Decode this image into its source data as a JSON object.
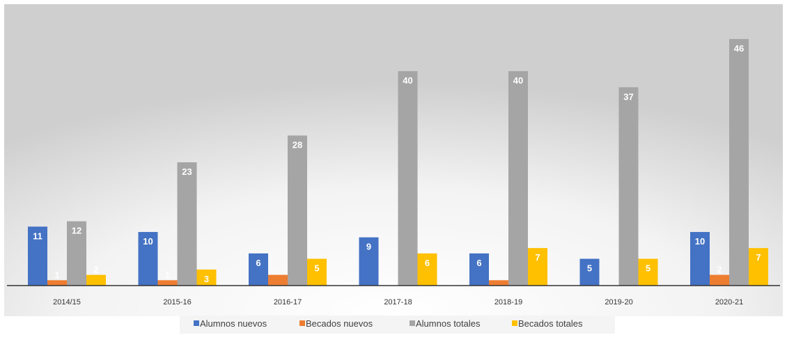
{
  "chart_data": {
    "type": "bar",
    "categories": [
      "2014/15",
      "2015-16",
      "2016-17",
      "2017-18",
      "2018-19",
      "2019-20",
      "2020-21"
    ],
    "series": [
      {
        "name": "Alumnos nuevos",
        "color": "#4472C4",
        "values": [
          11,
          10,
          6,
          9,
          6,
          5,
          10
        ]
      },
      {
        "name": "Becados nuevos",
        "color": "#ED7D31",
        "values": [
          1,
          1,
          2,
          0,
          1,
          0,
          2
        ]
      },
      {
        "name": "Alumnos totales",
        "color": "#A5A5A5",
        "values": [
          12,
          23,
          28,
          40,
          40,
          37,
          46
        ]
      },
      {
        "name": "Becados totales",
        "color": "#FFC000",
        "values": [
          2,
          3,
          5,
          6,
          7,
          5,
          7
        ]
      }
    ],
    "data_labels": [
      [
        "11",
        "10",
        "6",
        "9",
        "6",
        "5",
        "10"
      ],
      [
        "1",
        "1",
        "",
        "",
        "",
        "",
        "2"
      ],
      [
        "12",
        "23",
        "28",
        "40",
        "40",
        "37",
        "46"
      ],
      [
        "2",
        "3",
        "5",
        "6",
        "7",
        "5",
        "7"
      ]
    ],
    "ylim": [
      0,
      50
    ],
    "grid": false,
    "legend_position": "bottom",
    "title": "",
    "xlabel": "",
    "ylabel": ""
  }
}
